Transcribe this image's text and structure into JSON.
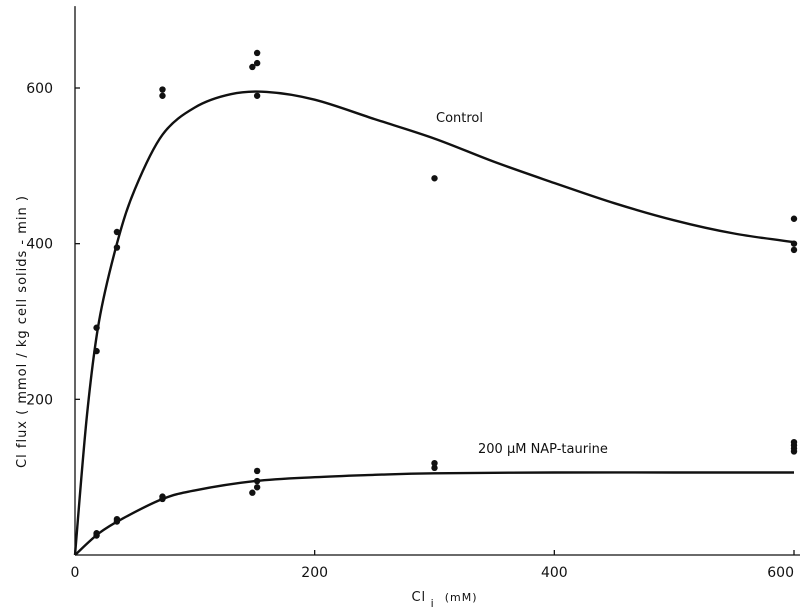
{
  "chart_data": {
    "type": "scatter",
    "title": "",
    "xlabel": "Cl",
    "xlabel_subscript": "i",
    "xunit": "(mM)",
    "ylabel": "Cl flux ( mmol / kg cell solids - min )",
    "xlim": [
      0,
      605
    ],
    "ylim": [
      0,
      700
    ],
    "xticks": [
      0,
      200,
      400,
      600
    ],
    "yticks": [
      200,
      400,
      600
    ],
    "xtick_labels": [
      "0",
      "200",
      "400",
      "600"
    ],
    "ytick_labels": [
      "200",
      "400",
      "600"
    ],
    "grid": false,
    "legend": "none",
    "series": [
      {
        "name": "Control",
        "points": [
          [
            18,
            292
          ],
          [
            18,
            262
          ],
          [
            35,
            395
          ],
          [
            35,
            415
          ],
          [
            73,
            598
          ],
          [
            73,
            590
          ],
          [
            148,
            627
          ],
          [
            152,
            645
          ],
          [
            152,
            632
          ],
          [
            152,
            590
          ],
          [
            300,
            484
          ],
          [
            600,
            432
          ],
          [
            600,
            400
          ],
          [
            600,
            392
          ]
        ],
        "curve": [
          [
            0,
            0
          ],
          [
            10,
            180
          ],
          [
            20,
            300
          ],
          [
            35,
            400
          ],
          [
            50,
            470
          ],
          [
            73,
            540
          ],
          [
            100,
            575
          ],
          [
            130,
            592
          ],
          [
            160,
            595
          ],
          [
            200,
            585
          ],
          [
            250,
            560
          ],
          [
            300,
            535
          ],
          [
            350,
            505
          ],
          [
            400,
            478
          ],
          [
            450,
            452
          ],
          [
            500,
            430
          ],
          [
            550,
            413
          ],
          [
            600,
            402
          ]
        ]
      },
      {
        "name": "200 μM NAP-taurine",
        "points": [
          [
            18,
            25
          ],
          [
            18,
            28
          ],
          [
            35,
            43
          ],
          [
            35,
            46
          ],
          [
            73,
            72
          ],
          [
            73,
            75
          ],
          [
            148,
            80
          ],
          [
            152,
            108
          ],
          [
            152,
            95
          ],
          [
            152,
            87
          ],
          [
            300,
            112
          ],
          [
            300,
            118
          ],
          [
            600,
            133
          ],
          [
            600,
            137
          ],
          [
            600,
            141
          ],
          [
            600,
            145
          ]
        ],
        "curve": [
          [
            0,
            0
          ],
          [
            20,
            28
          ],
          [
            40,
            47
          ],
          [
            73,
            72
          ],
          [
            100,
            83
          ],
          [
            150,
            95
          ],
          [
            200,
            100
          ],
          [
            250,
            103
          ],
          [
            300,
            105
          ],
          [
            400,
            106
          ],
          [
            500,
            106
          ],
          [
            600,
            106
          ]
        ]
      }
    ]
  }
}
